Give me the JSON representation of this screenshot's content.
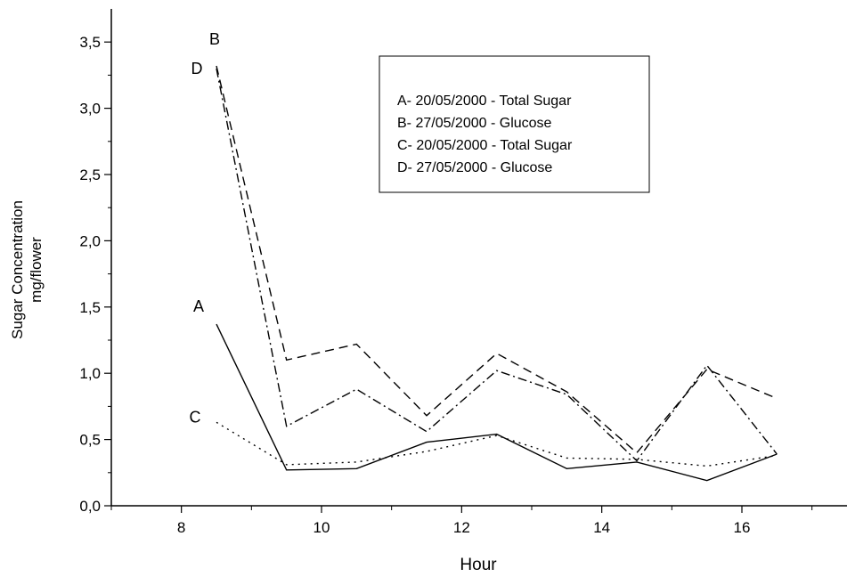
{
  "chart_data": {
    "type": "line",
    "xlabel": "Hour",
    "ylabel_line1": "Sugar Concentration",
    "ylabel_line2": "mg/flower",
    "xlim": [
      7,
      17.5
    ],
    "ylim": [
      0,
      3.75
    ],
    "xticks": [
      8,
      10,
      12,
      14,
      16
    ],
    "xtick_labels": [
      "8",
      "10",
      "12",
      "14",
      "16"
    ],
    "yticks": [
      0,
      0.5,
      1.0,
      1.5,
      2.0,
      2.5,
      3.0,
      3.5
    ],
    "ytick_labels": [
      "0,0",
      "0,5",
      "1,0",
      "1,5",
      "2,0",
      "2,5",
      "3,0",
      "3,5"
    ],
    "grid": false,
    "legend_position": "top-right",
    "legend": [
      "A- 20/05/2000 - Total Sugar",
      "B- 27/05/2000 - Glucose",
      "C- 20/05/2000 - Total Sugar",
      "D- 27/05/2000 - Glucose"
    ],
    "series": [
      {
        "label": "A",
        "line_style": "solid",
        "x": [
          8.5,
          9.5,
          10.5,
          11.5,
          12.5,
          13.5,
          14.5,
          15.5,
          16.5
        ],
        "y": [
          1.37,
          0.27,
          0.28,
          0.48,
          0.54,
          0.28,
          0.33,
          0.19,
          0.39
        ]
      },
      {
        "label": "B",
        "line_style": "dashed",
        "x": [
          8.5,
          9.5,
          10.5,
          11.5,
          12.5,
          13.5,
          14.5,
          15.5,
          16.5
        ],
        "y": [
          3.32,
          1.1,
          1.22,
          0.68,
          1.15,
          0.86,
          0.4,
          1.03,
          0.81
        ]
      },
      {
        "label": "C",
        "line_style": "dotted",
        "x": [
          8.5,
          9.5,
          10.5,
          11.5,
          12.5,
          13.5,
          14.5,
          15.5,
          16.5
        ],
        "y": [
          0.63,
          0.31,
          0.33,
          0.41,
          0.53,
          0.36,
          0.35,
          0.3,
          0.38
        ]
      },
      {
        "label": "D",
        "line_style": "dash-dot",
        "x": [
          8.5,
          9.5,
          10.5,
          11.5,
          12.5,
          13.5,
          14.5,
          15.5,
          16.5
        ],
        "y": [
          3.3,
          0.6,
          0.88,
          0.56,
          1.02,
          0.84,
          0.34,
          1.06,
          0.39
        ]
      }
    ]
  }
}
